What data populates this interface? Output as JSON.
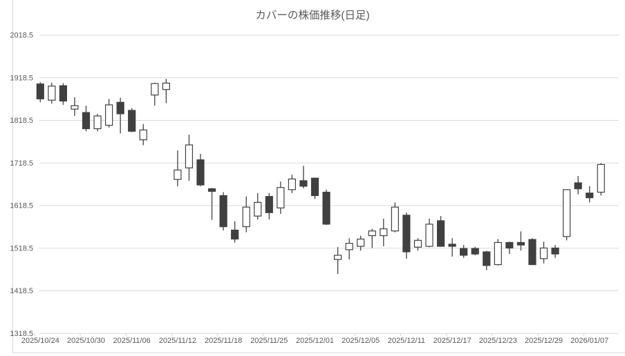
{
  "chart_data": {
    "type": "candlestick",
    "title": "カバーの株価推移(日足)",
    "xlabel": "",
    "ylabel": "",
    "ylim": [
      1318.5,
      2018.5
    ],
    "y_ticks": [
      2018.5,
      1918.5,
      1818.5,
      1718.5,
      1618.5,
      1518.5,
      1418.5,
      1318.5
    ],
    "x_labels": [
      "2025/10/24",
      "2025/10/30",
      "2025/11/06",
      "2025/11/12",
      "2025/11/18",
      "2025/11/25",
      "2025/12/01",
      "2025/12/05",
      "2025/12/11",
      "2025/12/17",
      "2025/12/23",
      "2025/12/29",
      "2026/01/07"
    ],
    "x_label_interval": 4,
    "grid": "horizontal",
    "legend": "none",
    "candles_format": [
      "open",
      "high",
      "low",
      "close"
    ],
    "candles": [
      [
        1904,
        1908,
        1861,
        1869
      ],
      [
        1866,
        1907,
        1858,
        1899
      ],
      [
        1900,
        1906,
        1855,
        1864
      ],
      [
        1845,
        1873,
        1829,
        1853
      ],
      [
        1837,
        1853,
        1793,
        1799
      ],
      [
        1799,
        1834,
        1793,
        1829
      ],
      [
        1807,
        1869,
        1802,
        1855
      ],
      [
        1861,
        1872,
        1788,
        1834
      ],
      [
        1842,
        1847,
        1791,
        1793
      ],
      [
        1773,
        1810,
        1760,
        1796
      ],
      [
        1878,
        1907,
        1853,
        1905
      ],
      [
        1891,
        1916,
        1859,
        1906
      ],
      [
        1680,
        1748,
        1664,
        1702
      ],
      [
        1707,
        1785,
        1677,
        1761
      ],
      [
        1726,
        1740,
        1664,
        1667
      ],
      [
        1658,
        1660,
        1585,
        1652
      ],
      [
        1642,
        1650,
        1560,
        1569
      ],
      [
        1561,
        1582,
        1532,
        1540
      ],
      [
        1569,
        1640,
        1556,
        1615
      ],
      [
        1594,
        1648,
        1586,
        1626
      ],
      [
        1640,
        1648,
        1586,
        1602
      ],
      [
        1613,
        1675,
        1599,
        1661
      ],
      [
        1656,
        1691,
        1648,
        1681
      ],
      [
        1677,
        1712,
        1659,
        1664
      ],
      [
        1683,
        1684,
        1634,
        1642
      ],
      [
        1650,
        1656,
        1573,
        1575
      ],
      [
        1492,
        1521,
        1458,
        1502
      ],
      [
        1515,
        1542,
        1492,
        1530
      ],
      [
        1523,
        1548,
        1513,
        1540
      ],
      [
        1548,
        1564,
        1519,
        1559
      ],
      [
        1548,
        1588,
        1523,
        1564
      ],
      [
        1559,
        1626,
        1556,
        1615
      ],
      [
        1596,
        1602,
        1494,
        1510
      ],
      [
        1521,
        1542,
        1513,
        1537
      ],
      [
        1523,
        1588,
        1521,
        1575
      ],
      [
        1583,
        1594,
        1522,
        1523
      ],
      [
        1528,
        1542,
        1499,
        1523
      ],
      [
        1518,
        1526,
        1496,
        1502
      ],
      [
        1518,
        1522,
        1502,
        1505
      ],
      [
        1510,
        1512,
        1467,
        1478
      ],
      [
        1480,
        1540,
        1478,
        1532
      ],
      [
        1532,
        1534,
        1505,
        1519
      ],
      [
        1532,
        1558,
        1513,
        1526
      ],
      [
        1539,
        1542,
        1479,
        1480
      ],
      [
        1494,
        1534,
        1483,
        1519
      ],
      [
        1519,
        1526,
        1496,
        1505
      ],
      [
        1546,
        1657,
        1537,
        1656
      ],
      [
        1672,
        1688,
        1645,
        1658
      ],
      [
        1648,
        1664,
        1626,
        1637
      ],
      [
        1650,
        1718,
        1642,
        1715
      ]
    ],
    "colors": {
      "up_fill": "#ffffff",
      "down_fill": "#404040",
      "outline": "#404040",
      "grid": "#d9d9d9",
      "frame": "#d9d9d9",
      "axis_text": "#595959",
      "title_text": "#595959",
      "background": "#ffffff"
    }
  }
}
